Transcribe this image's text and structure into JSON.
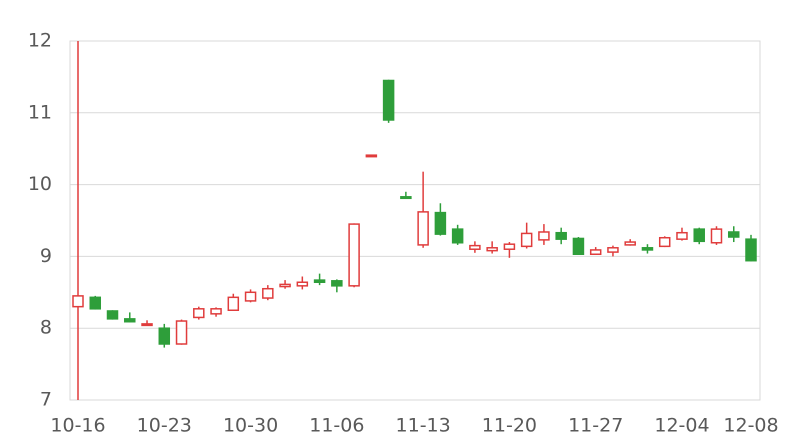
{
  "chart_data": {
    "type": "candlestick",
    "categories": [
      "10-16",
      null,
      null,
      null,
      null,
      "10-23",
      null,
      null,
      null,
      null,
      "10-30",
      null,
      null,
      null,
      null,
      "11-06",
      null,
      null,
      null,
      null,
      "11-13",
      null,
      null,
      null,
      null,
      "11-20",
      null,
      null,
      null,
      null,
      "11-27",
      null,
      null,
      null,
      null,
      "12-04",
      null,
      null,
      null,
      "12-08"
    ],
    "open": [
      8.3,
      8.43,
      8.24,
      8.13,
      8.04,
      8.0,
      7.78,
      8.15,
      8.2,
      8.25,
      8.38,
      8.42,
      8.58,
      8.59,
      8.67,
      8.66,
      8.59,
      10.4,
      11.45,
      9.83,
      9.16,
      9.61,
      9.38,
      9.1,
      9.08,
      9.1,
      9.14,
      9.23,
      9.33,
      9.25,
      9.03,
      9.06,
      9.16,
      9.12,
      9.14,
      9.24,
      9.38,
      9.19,
      9.34,
      9.24
    ],
    "high": [
      12,
      8.45,
      8.25,
      8.22,
      8.11,
      8.06,
      8.12,
      8.3,
      8.29,
      8.48,
      8.54,
      8.6,
      8.67,
      8.72,
      8.76,
      8.68,
      9.46,
      10.41,
      11.46,
      9.9,
      10.18,
      9.74,
      9.44,
      9.21,
      9.21,
      9.2,
      9.47,
      9.45,
      9.4,
      9.27,
      9.13,
      9.15,
      9.24,
      9.17,
      9.28,
      9.4,
      9.4,
      9.42,
      9.42,
      9.3
    ],
    "low": [
      7,
      8.26,
      8.12,
      8.08,
      8.04,
      7.73,
      7.77,
      8.12,
      8.16,
      8.24,
      8.36,
      8.39,
      8.55,
      8.54,
      8.6,
      8.5,
      8.57,
      10.4,
      10.86,
      9.82,
      9.12,
      9.29,
      9.16,
      9.05,
      9.04,
      8.98,
      9.11,
      9.16,
      9.17,
      9.02,
      9.02,
      9.0,
      9.15,
      9.04,
      9.13,
      9.22,
      9.17,
      9.16,
      9.2,
      8.93
    ],
    "close": [
      8.45,
      8.27,
      8.13,
      8.09,
      8.06,
      7.78,
      8.1,
      8.27,
      8.27,
      8.43,
      8.5,
      8.55,
      8.61,
      8.64,
      8.64,
      8.59,
      9.45,
      10.41,
      10.9,
      9.82,
      9.62,
      9.31,
      9.19,
      9.15,
      9.12,
      9.17,
      9.32,
      9.34,
      9.24,
      9.03,
      9.09,
      9.12,
      9.2,
      9.09,
      9.26,
      9.33,
      9.21,
      9.38,
      9.27,
      8.94
    ],
    "up_color": "#e03c3c",
    "down_color": "#2e9e3a",
    "ylim": [
      7,
      12
    ],
    "yticks": [
      7,
      8,
      9,
      10,
      11,
      12
    ],
    "grid": true
  }
}
